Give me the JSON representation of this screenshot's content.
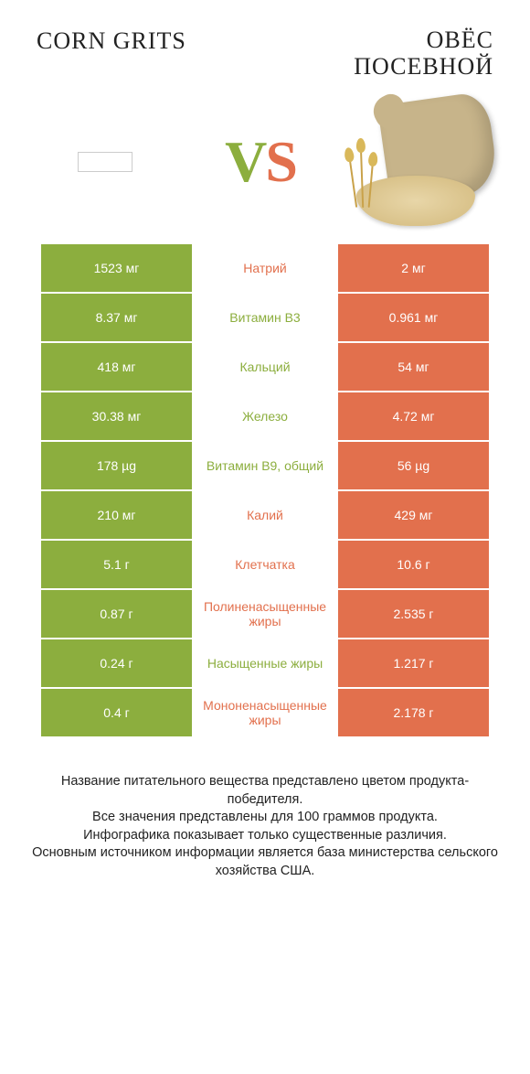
{
  "header": {
    "left_title": "CORN GRITS",
    "right_title": "ОВЁС\nПОСЕВНОЙ"
  },
  "vs": {
    "v": "V",
    "s": "S"
  },
  "colors": {
    "green": "#8cae3e",
    "orange": "#e2704d",
    "text": "#222222",
    "white": "#ffffff"
  },
  "table": {
    "left_bg": "#8cae3e",
    "right_bg": "#e2704d",
    "rows": [
      {
        "left": "1523 мг",
        "mid": "Натрий",
        "mid_color": "orange",
        "right": "2 мг"
      },
      {
        "left": "8.37 мг",
        "mid": "Витамин B3",
        "mid_color": "green",
        "right": "0.961 мг"
      },
      {
        "left": "418 мг",
        "mid": "Кальций",
        "mid_color": "green",
        "right": "54 мг"
      },
      {
        "left": "30.38 мг",
        "mid": "Железо",
        "mid_color": "green",
        "right": "4.72 мг"
      },
      {
        "left": "178 µg",
        "mid": "Витамин B9, общий",
        "mid_color": "green",
        "right": "56 µg"
      },
      {
        "left": "210 мг",
        "mid": "Калий",
        "mid_color": "orange",
        "right": "429 мг"
      },
      {
        "left": "5.1 г",
        "mid": "Клетчатка",
        "mid_color": "orange",
        "right": "10.6 г"
      },
      {
        "left": "0.87 г",
        "mid": "Полиненасыщенные жиры",
        "mid_color": "orange",
        "right": "2.535 г"
      },
      {
        "left": "0.24 г",
        "mid": "Насыщенные жиры",
        "mid_color": "green",
        "right": "1.217 г"
      },
      {
        "left": "0.4 г",
        "mid": "Мононенасыщенные жиры",
        "mid_color": "orange",
        "right": "2.178 г"
      }
    ]
  },
  "footer": {
    "lines": [
      "Название питательного вещества представлено цветом продукта-победителя.",
      "Все значения представлены для 100 граммов продукта.",
      "Инфографика показывает только существенные различия.",
      "Основным источником информации является база министерства сельского хозяйства США."
    ]
  }
}
